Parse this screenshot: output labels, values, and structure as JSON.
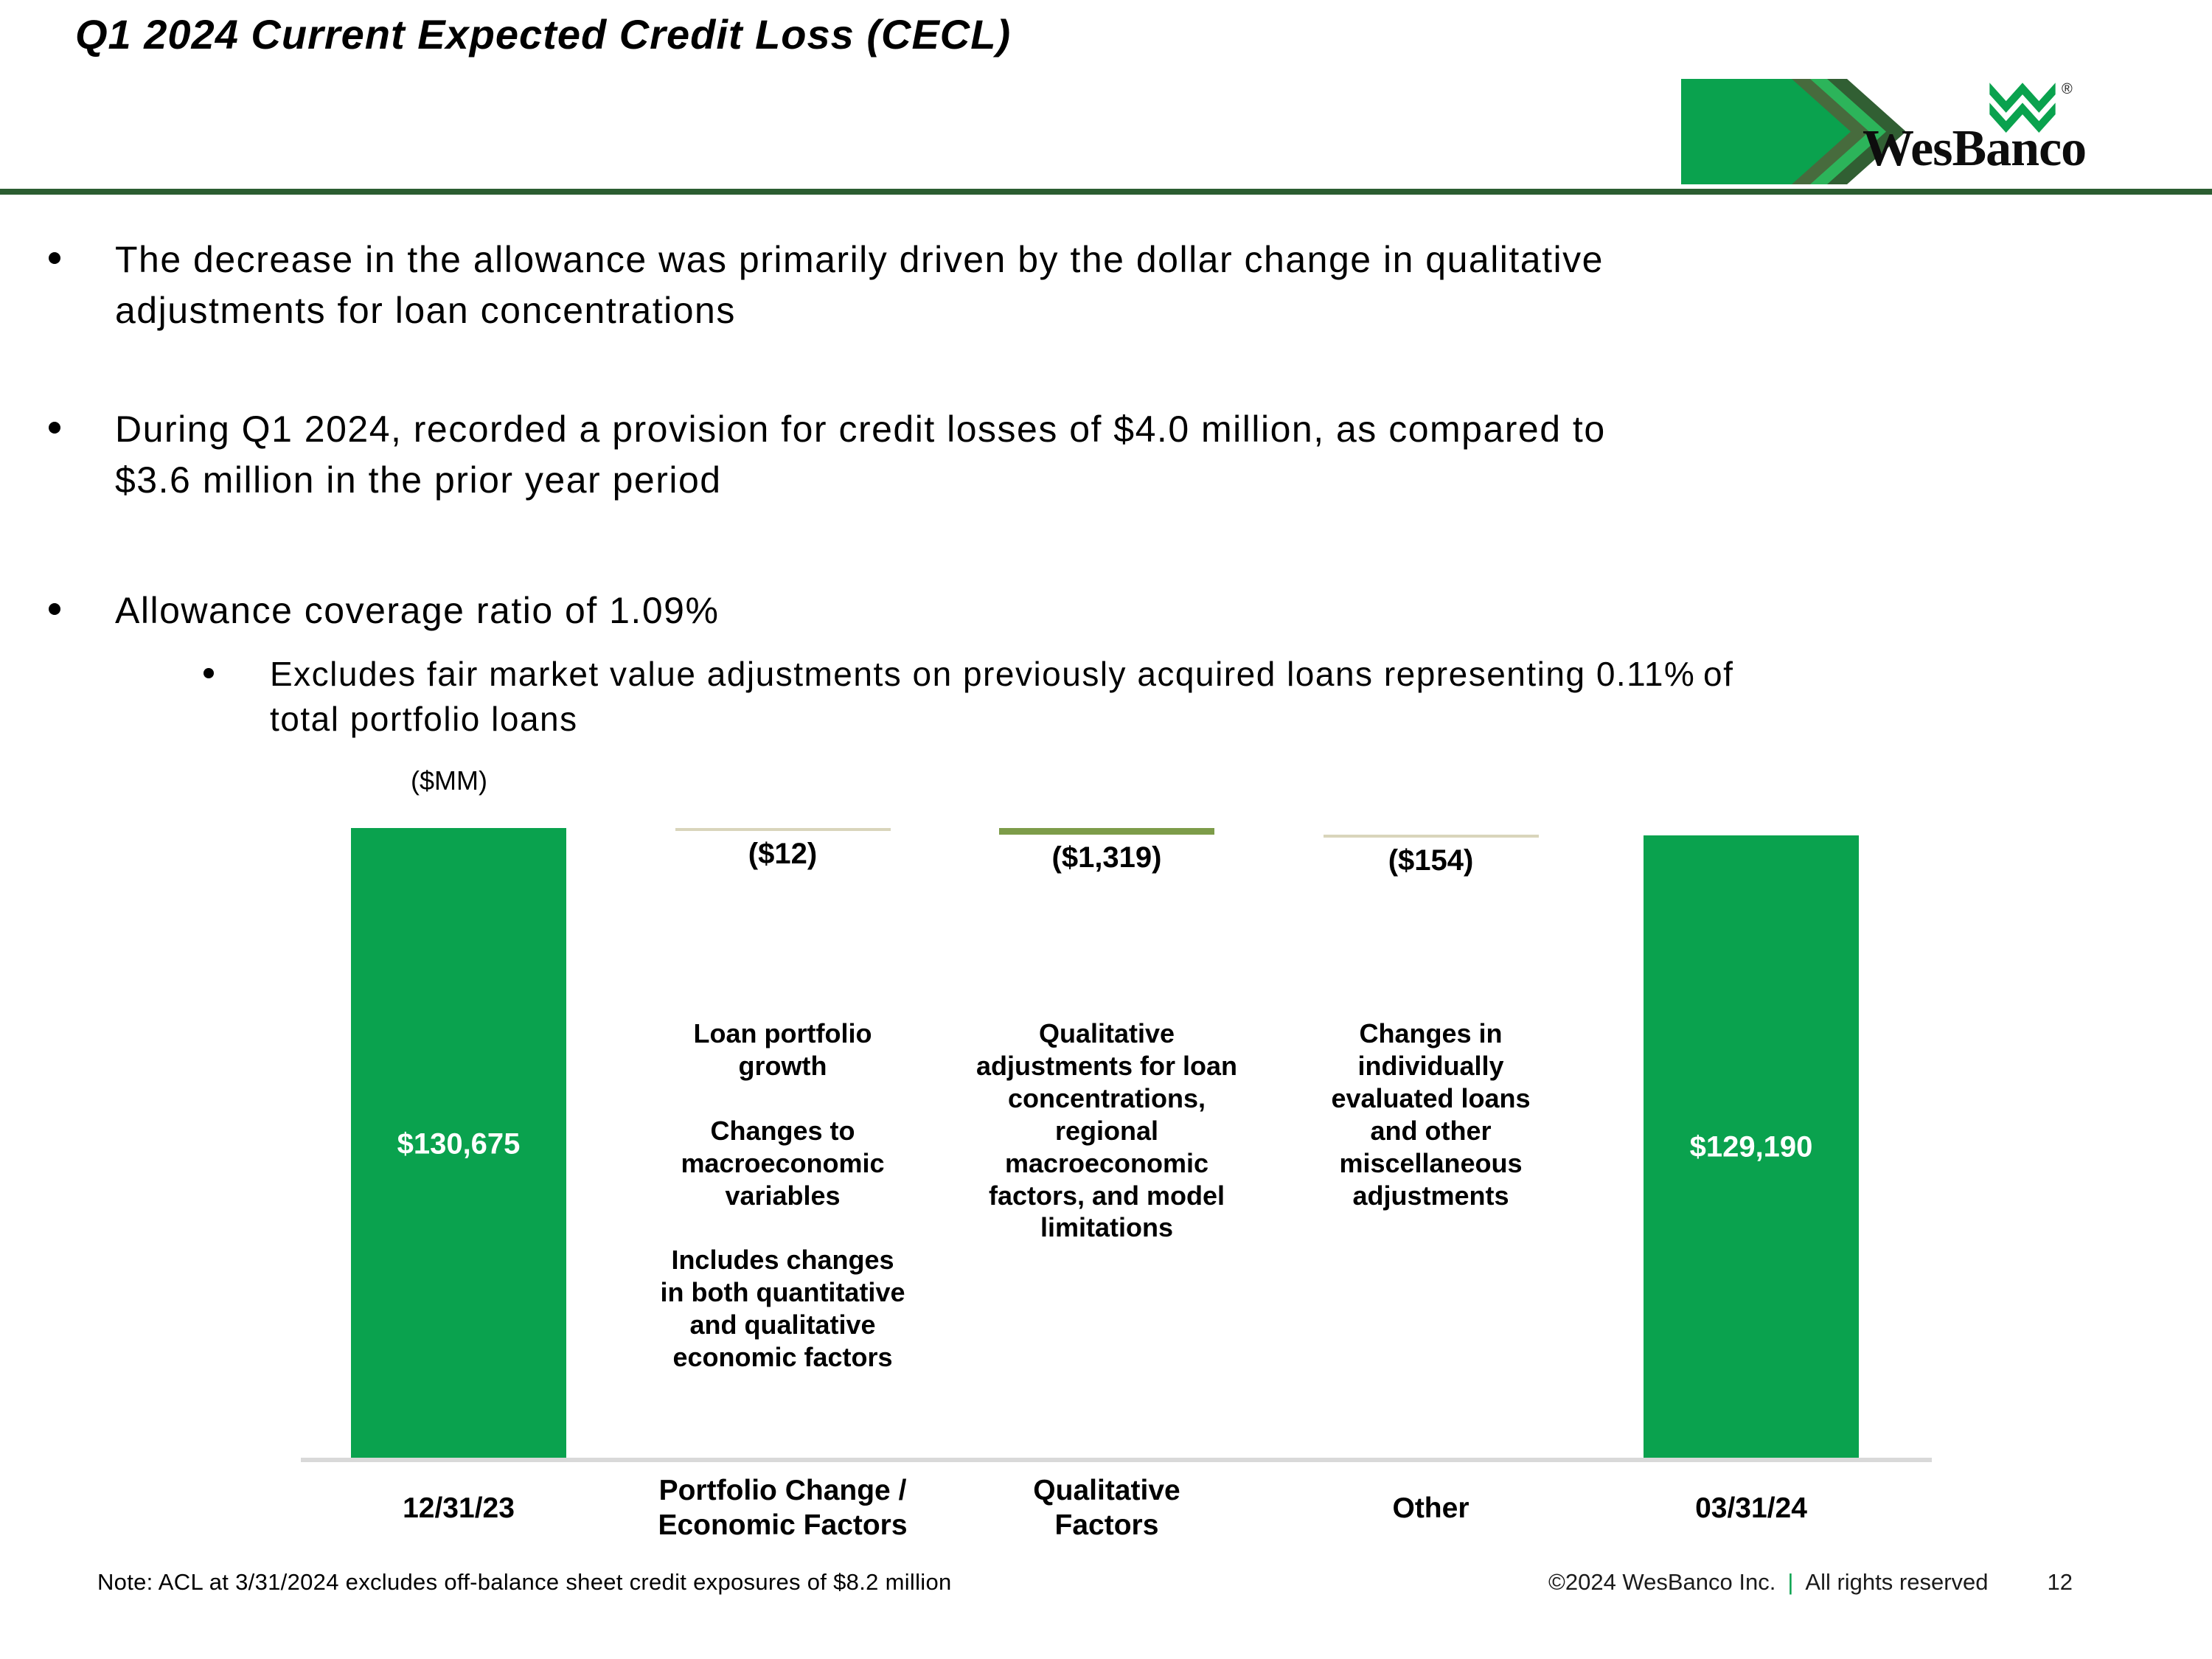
{
  "header": {
    "kicker": "Q1 2024 Current Expected Credit Loss (CECL)",
    "banner_title": "Allowance coverage ratio of 1.09%",
    "logo": {
      "wordmark": "WesBanco",
      "registered": "®"
    }
  },
  "colors": {
    "brand_green": "#0aa24e",
    "banner_rule_dark_green": "#2b5d31",
    "chevron_dark": "#476b3d",
    "chevron_bright": "#2cb45a",
    "chevron_outer": "#315f33",
    "olive_segment": "#7d9c49",
    "tan_segment": "#d9d5bb",
    "axis_gray": "#d9d9d9"
  },
  "bullets": [
    {
      "text": "The decrease in the allowance was primarily driven by the dollar change in qualitative\nadjustments for loan concentrations"
    },
    {
      "text": "During Q1 2024, recorded a provision for credit losses of $4.0 million, as compared to\n$3.6 million in the prior year period"
    },
    {
      "text": "Allowance coverage ratio of 1.09%"
    }
  ],
  "sub_bullet": {
    "text": "Excludes fair market value adjustments on previously acquired loans representing 0.11% of\ntotal portfolio loans"
  },
  "chart_data": {
    "type": "bar",
    "subtype": "waterfall",
    "units_label": "($MM)",
    "title": "",
    "xlabel": "",
    "ylabel": "",
    "ylim": [
      0,
      130675
    ],
    "grid": false,
    "legend": false,
    "categories": [
      "12/31/23",
      "Portfolio Change /\nEconomic Factors",
      "Qualitative\nFactors",
      "Other",
      "03/31/24"
    ],
    "columns": [
      {
        "category": "12/31/23",
        "kind": "total",
        "value": 130675,
        "label": "$130,675",
        "color": "#0aa24e",
        "description": ""
      },
      {
        "category": "Portfolio Change /\nEconomic Factors",
        "kind": "delta",
        "value": -12,
        "label": "($12)",
        "color": "#d9d5bb",
        "description": "Loan portfolio\ngrowth\n\nChanges to\nmacroeconomic\nvariables\n\nIncludes changes\nin both quantitative\nand qualitative\neconomic factors"
      },
      {
        "category": "Qualitative\nFactors",
        "kind": "delta",
        "value": -1319,
        "label": "($1,319)",
        "color": "#7d9c49",
        "description": "Qualitative\nadjustments for loan\nconcentrations,\nregional\nmacroeconomic\nfactors, and model\nlimitations"
      },
      {
        "category": "Other",
        "kind": "delta",
        "value": -154,
        "label": "($154)",
        "color": "#d9d5bb",
        "description": "Changes in\nindividually\nevaluated loans\nand other\nmiscellaneous\nadjustments"
      },
      {
        "category": "03/31/24",
        "kind": "total",
        "value": 129190,
        "label": "$129,190",
        "color": "#0aa24e",
        "description": ""
      }
    ]
  },
  "footnote": "Note: ACL at 3/31/2024 excludes off-balance sheet credit exposures of $8.2 million",
  "footer": {
    "copyright": "©2024 WesBanco Inc.",
    "separator": "|",
    "rights": "All rights reserved",
    "page_number": "12"
  }
}
